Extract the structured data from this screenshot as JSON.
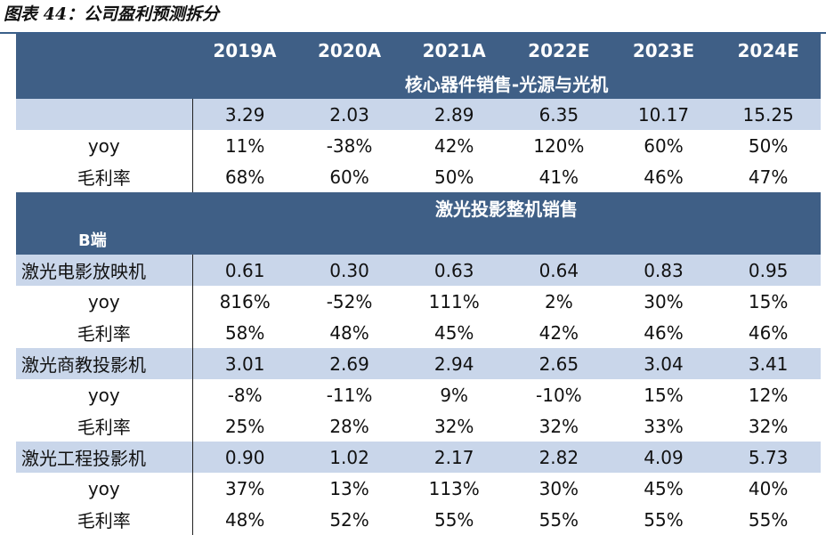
{
  "title": "图表 44：公司盈利预测拆分",
  "header": {
    "label": "",
    "years": [
      "2019A",
      "2020A",
      "2021A",
      "2022E",
      "2023E",
      "2024E"
    ]
  },
  "sections": [
    {
      "title": "核心器件销售-光源与光机",
      "rows": [
        {
          "label": "",
          "band": true,
          "values": [
            "3.29",
            "2.03",
            "2.89",
            "6.35",
            "10.17",
            "15.25"
          ]
        },
        {
          "label": "yoy",
          "band": false,
          "values": [
            "11%",
            "-38%",
            "42%",
            "120%",
            "60%",
            "50%"
          ]
        },
        {
          "label": "毛利率",
          "band": false,
          "values": [
            "68%",
            "60%",
            "50%",
            "41%",
            "46%",
            "47%"
          ]
        }
      ]
    },
    {
      "title": "激光投影整机销售",
      "subtitle": "B端",
      "rows": [
        {
          "label": "激光电影放映机",
          "band": true,
          "values": [
            "0.61",
            "0.30",
            "0.63",
            "0.64",
            "0.83",
            "0.95"
          ]
        },
        {
          "label": "yoy",
          "band": false,
          "values": [
            "816%",
            "-52%",
            "111%",
            "2%",
            "30%",
            "15%"
          ]
        },
        {
          "label": "毛利率",
          "band": false,
          "values": [
            "58%",
            "48%",
            "45%",
            "42%",
            "46%",
            "46%"
          ]
        },
        {
          "label": "激光商教投影机",
          "band": true,
          "values": [
            "3.01",
            "2.69",
            "2.94",
            "2.65",
            "3.04",
            "3.41"
          ]
        },
        {
          "label": "yoy",
          "band": false,
          "values": [
            "-8%",
            "-11%",
            "9%",
            "-10%",
            "15%",
            "12%"
          ]
        },
        {
          "label": "毛利率",
          "band": false,
          "values": [
            "25%",
            "28%",
            "32%",
            "32%",
            "33%",
            "32%"
          ]
        },
        {
          "label": "激光工程投影机",
          "band": true,
          "values": [
            "0.90",
            "1.02",
            "2.17",
            "2.82",
            "4.09",
            "5.73"
          ]
        },
        {
          "label": "yoy",
          "band": false,
          "values": [
            "37%",
            "13%",
            "113%",
            "30%",
            "45%",
            "40%"
          ]
        },
        {
          "label": "毛利率",
          "band": false,
          "values": [
            "48%",
            "52%",
            "55%",
            "55%",
            "55%",
            "55%"
          ]
        }
      ]
    }
  ]
}
